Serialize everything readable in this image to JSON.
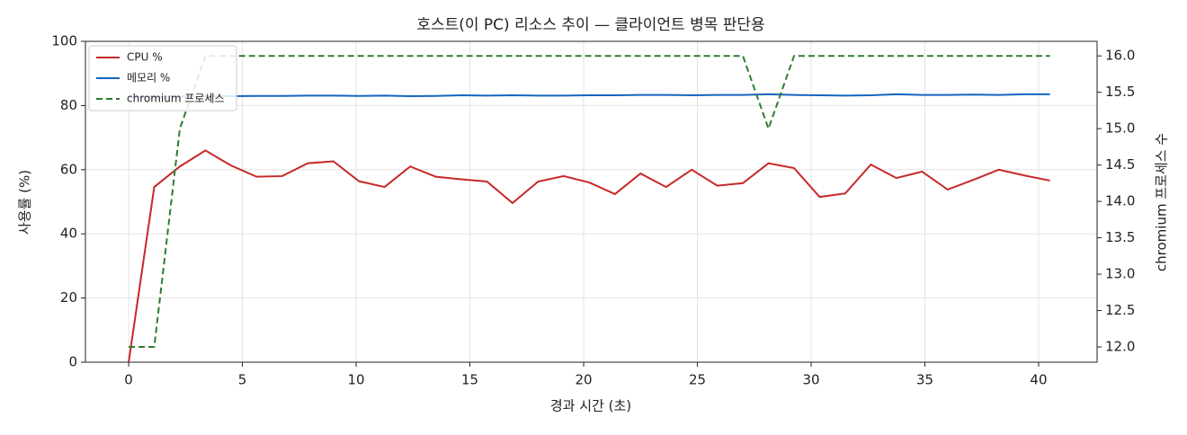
{
  "chart_data": {
    "type": "line",
    "title": "호스트(이 PC) 리소스 추이 — 클라이언트 병목 판단용",
    "x_label": "경과 시간 (초)",
    "y_label": "사용률 (%)",
    "y2_label": "chromium 프로세스 수",
    "x": [
      0,
      1.125,
      2.25,
      3.375,
      4.5,
      5.625,
      6.75,
      7.875,
      9,
      10.125,
      11.25,
      12.375,
      13.5,
      14.625,
      15.75,
      16.875,
      18,
      19.125,
      20.25,
      21.375,
      22.5,
      23.625,
      24.75,
      25.875,
      27,
      28.125,
      29.25,
      30.375,
      31.5,
      32.625,
      33.75,
      34.875,
      36,
      37.125,
      38.25,
      39.375,
      40.5
    ],
    "series": [
      {
        "name": "CPU %",
        "color": "#c62828",
        "dash": false,
        "values": [
          0,
          54.6,
          61,
          66,
          61.3,
          57.8,
          58,
          62,
          62.6,
          56.4,
          54.6,
          61,
          57.8,
          57,
          56.3,
          49.6,
          56.3,
          58,
          56,
          52.4,
          58.8,
          54.6,
          60,
          55,
          55.8,
          62,
          60.5,
          51.5,
          52.6,
          61.6,
          57.4,
          59.4,
          53.8,
          56.8,
          60,
          58.2,
          56.6
        ]
      },
      {
        "name": "메모리 %",
        "color": "#1565c0",
        "dash": false,
        "values": [
          82.6,
          82.7,
          82.8,
          82.9,
          82.9,
          83,
          83,
          83.1,
          83.1,
          83,
          83.1,
          82.9,
          83,
          83.2,
          83.1,
          83.2,
          83.1,
          83.1,
          83.2,
          83.2,
          83.3,
          83.3,
          83.2,
          83.3,
          83.3,
          83.5,
          83.3,
          83.2,
          83.1,
          83.2,
          83.5,
          83.3,
          83.3,
          83.4,
          83.3,
          83.5,
          83.5
        ]
      },
      {
        "name": "chromium 프로세스",
        "color": "#2e7d32",
        "dash": true,
        "axis": "y2",
        "values": [
          12,
          12,
          15,
          16,
          16,
          16,
          16,
          16,
          16,
          16,
          16,
          16,
          16,
          16,
          16,
          16,
          16,
          16,
          16,
          16,
          16,
          16,
          16,
          16,
          16,
          15,
          16,
          16,
          16,
          16,
          16,
          16,
          16,
          16,
          16,
          16,
          16
        ]
      }
    ],
    "xlim": [
      -1.9,
      42.57
    ],
    "xticks": [
      0,
      5,
      10,
      15,
      20,
      25,
      30,
      35,
      40
    ],
    "ylim": [
      0,
      100
    ],
    "yticks": [
      0,
      20,
      40,
      60,
      80,
      100
    ],
    "y2lim": [
      11.79,
      16.2
    ],
    "y2ticks": [
      {
        "value": 12,
        "label": "12.0"
      },
      12.5,
      {
        "value": 13,
        "label": "13.0"
      },
      13.5,
      {
        "value": 14,
        "label": "14.0"
      },
      14.5,
      {
        "value": 15,
        "label": "15.0"
      },
      15.5,
      {
        "value": 16,
        "label": "16.0"
      }
    ],
    "grid": true,
    "legend": "upper-left"
  }
}
